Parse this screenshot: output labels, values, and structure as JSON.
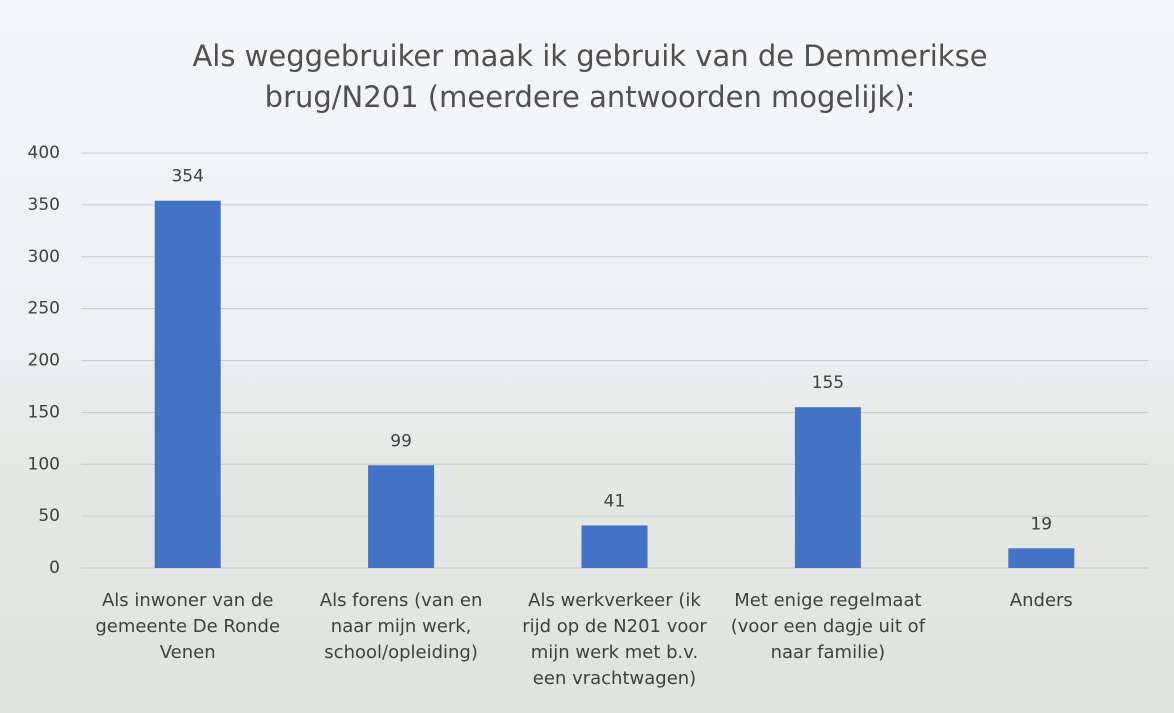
{
  "chart_data": {
    "type": "bar",
    "title": "Als weggebruiker maak ik gebruik van de Demmerikse brug/N201 (meerdere antwoorden mogelijk):",
    "categories": [
      "Als inwoner van de gemeente De Ronde Venen",
      "Als forens (van en naar mijn werk, school/opleiding)",
      "Als werkverkeer (ik rijd op de N201 voor mijn werk met b.v. een vrachtwagen)",
      "Met enige regelmaat (voor een dagje uit of naar familie)",
      "Anders"
    ],
    "values": [
      354,
      99,
      41,
      155,
      19
    ],
    "color": "#4472c4",
    "ylim": [
      0,
      400
    ],
    "yticks": [
      0,
      50,
      100,
      150,
      200,
      250,
      300,
      350,
      400
    ],
    "grid": true
  }
}
